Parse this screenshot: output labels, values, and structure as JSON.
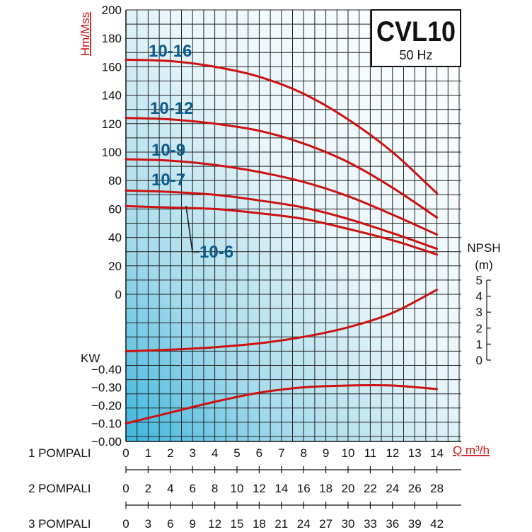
{
  "chart_data": {
    "type": "line",
    "title": "CVL10",
    "subtitle": "50 Hz",
    "ylabel": "Hm/Mss",
    "ylim": [
      0,
      200
    ],
    "y_ticks": [
      "200",
      "180",
      "160",
      "140",
      "120",
      "100",
      "80",
      "60",
      "40",
      "20",
      "0"
    ],
    "npsh_label": "NPSH",
    "npsh_unit": "(m)",
    "npsh_ylim": [
      0,
      5
    ],
    "npsh_ticks": [
      "5",
      "4",
      "3",
      "2",
      "1",
      "0"
    ],
    "kw_label": "KW",
    "kw_ylim": [
      0,
      0.4
    ],
    "kw_ticks": [
      "−0.40",
      "−0.30",
      "−0.20",
      "−0.10",
      "−0.00"
    ],
    "flow_label": "Q m³/h",
    "axes": [
      {
        "label": "1 POMPALI",
        "ticks": [
          "0",
          "1",
          "2",
          "3",
          "4",
          "5",
          "6",
          "7",
          "8",
          "9",
          "10",
          "11",
          "12",
          "13",
          "14"
        ]
      },
      {
        "label": "2 POMPALI",
        "ticks": [
          "0",
          "2",
          "4",
          "6",
          "8",
          "10",
          "12",
          "14",
          "16",
          "18",
          "20",
          "22",
          "24",
          "26",
          "28"
        ]
      },
      {
        "label": "3 POMPALI",
        "ticks": [
          "0",
          "3",
          "6",
          "9",
          "12",
          "15",
          "18",
          "21",
          "24",
          "27",
          "30",
          "33",
          "36",
          "39",
          "42"
        ]
      }
    ],
    "x": [
      0,
      2,
      4,
      6,
      8,
      10,
      12,
      14
    ],
    "series": [
      {
        "name": "10-16",
        "panel": "head",
        "values": [
          165,
          164,
          160,
          153,
          141,
          123,
          100,
          71
        ]
      },
      {
        "name": "10-12",
        "panel": "head",
        "values": [
          124,
          123,
          120,
          115,
          106,
          93,
          75,
          54
        ]
      },
      {
        "name": "10-9",
        "panel": "head",
        "values": [
          95,
          94,
          91,
          86,
          79,
          69,
          56,
          42
        ]
      },
      {
        "name": "10-7",
        "panel": "head",
        "values": [
          73,
          72,
          70,
          66,
          61,
          53,
          43,
          32
        ]
      },
      {
        "name": "10-6",
        "panel": "head",
        "values": [
          62,
          61,
          60,
          57,
          53,
          46,
          38,
          28
        ]
      },
      {
        "name": "",
        "panel": "npsh",
        "values": [
          0.55,
          0.65,
          0.8,
          1.05,
          1.45,
          2.05,
          2.95,
          4.4
        ]
      },
      {
        "name": "",
        "panel": "power",
        "values": [
          0.1,
          0.16,
          0.22,
          0.27,
          0.3,
          0.31,
          0.31,
          0.29
        ]
      }
    ]
  },
  "colors": {
    "curve": "#cc1111",
    "series_label": "#0b5a8c",
    "grid": "#222222"
  }
}
